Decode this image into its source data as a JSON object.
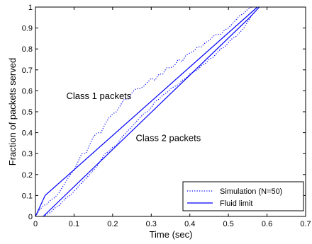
{
  "chart_data": {
    "type": "line",
    "xlabel": "Time (sec)",
    "ylabel": "Fraction of packets served",
    "xlim": [
      0,
      0.7
    ],
    "ylim": [
      0,
      1
    ],
    "xticks": [
      0,
      0.1,
      0.2,
      0.3,
      0.4,
      0.5,
      0.6,
      0.7
    ],
    "xtick_labels": [
      "0",
      "0.1",
      "0.2",
      "0.3",
      "0.4",
      "0.5",
      "0.6",
      "0.7"
    ],
    "yticks": [
      0,
      0.1,
      0.2,
      0.3,
      0.4,
      0.5,
      0.6,
      0.7,
      0.8,
      0.9,
      1
    ],
    "ytick_labels": [
      "0",
      "0.1",
      "0.2",
      "0.3",
      "0.4",
      "0.5",
      "0.6",
      "0.7",
      "0.8",
      "0.9",
      "1"
    ],
    "grid": false,
    "legend_position": "bottom-right",
    "legend": [
      "Simulation (N=50)",
      "Fluid limit"
    ],
    "annotations": [
      {
        "text": "Class 1 packets",
        "x": 0.08,
        "y": 0.56
      },
      {
        "text": "Class 2 packets",
        "x": 0.26,
        "y": 0.36
      }
    ],
    "series": [
      {
        "name": "Fluid limit",
        "style": "solid",
        "color": "#0000ff",
        "x": [
          0,
          0.025,
          0.575
        ],
        "y": [
          0,
          0.1,
          1.0
        ]
      },
      {
        "name": "Fluid limit",
        "style": "solid",
        "color": "#0000ff",
        "x": [
          0.02,
          0.555,
          0.58
        ],
        "y": [
          0,
          0.95,
          1.0
        ]
      },
      {
        "name": "Simulation (N=50)",
        "style": "dotted",
        "color": "#0000ff",
        "x": [
          0,
          0.01,
          0.02,
          0.03,
          0.04,
          0.05,
          0.06,
          0.07,
          0.08,
          0.09,
          0.1,
          0.11,
          0.12,
          0.13,
          0.14,
          0.15,
          0.16,
          0.17,
          0.18,
          0.19,
          0.2,
          0.21,
          0.22,
          0.23,
          0.24,
          0.25,
          0.26,
          0.27,
          0.28,
          0.29,
          0.3,
          0.31,
          0.32,
          0.33,
          0.34,
          0.35,
          0.36,
          0.37,
          0.38,
          0.39,
          0.4,
          0.41,
          0.42,
          0.43,
          0.44,
          0.45,
          0.46,
          0.47,
          0.48,
          0.49,
          0.5,
          0.51,
          0.52,
          0.53,
          0.54,
          0.55,
          0.56
        ],
        "y": [
          0,
          0.03,
          0.05,
          0.06,
          0.08,
          0.09,
          0.11,
          0.14,
          0.17,
          0.2,
          0.22,
          0.26,
          0.3,
          0.3,
          0.34,
          0.38,
          0.4,
          0.4,
          0.44,
          0.47,
          0.49,
          0.5,
          0.53,
          0.56,
          0.56,
          0.59,
          0.61,
          0.61,
          0.62,
          0.64,
          0.66,
          0.65,
          0.68,
          0.68,
          0.71,
          0.71,
          0.72,
          0.75,
          0.74,
          0.77,
          0.78,
          0.79,
          0.81,
          0.81,
          0.83,
          0.84,
          0.86,
          0.87,
          0.87,
          0.89,
          0.9,
          0.92,
          0.94,
          0.96,
          0.97,
          0.99,
          1.0
        ]
      },
      {
        "name": "Simulation (N=50)",
        "style": "dotted",
        "color": "#0000ff",
        "x": [
          0.02,
          0.03,
          0.04,
          0.05,
          0.06,
          0.07,
          0.08,
          0.09,
          0.1,
          0.11,
          0.12,
          0.13,
          0.14,
          0.15,
          0.16,
          0.17,
          0.18,
          0.19,
          0.2,
          0.21,
          0.22,
          0.23,
          0.24,
          0.25,
          0.26,
          0.27,
          0.28,
          0.29,
          0.3,
          0.31,
          0.32,
          0.33,
          0.34,
          0.35,
          0.36,
          0.37,
          0.38,
          0.39,
          0.4,
          0.41,
          0.42,
          0.43,
          0.44,
          0.45,
          0.46,
          0.47,
          0.48,
          0.49,
          0.5,
          0.51,
          0.52,
          0.53,
          0.54,
          0.55,
          0.56
        ],
        "y": [
          0,
          0.01,
          0.02,
          0.04,
          0.05,
          0.07,
          0.09,
          0.1,
          0.12,
          0.14,
          0.16,
          0.18,
          0.2,
          0.22,
          0.24,
          0.27,
          0.3,
          0.31,
          0.33,
          0.34,
          0.37,
          0.39,
          0.41,
          0.43,
          0.45,
          0.47,
          0.49,
          0.5,
          0.52,
          0.55,
          0.56,
          0.58,
          0.59,
          0.61,
          0.62,
          0.63,
          0.65,
          0.66,
          0.68,
          0.69,
          0.7,
          0.72,
          0.73,
          0.75,
          0.76,
          0.78,
          0.8,
          0.81,
          0.83,
          0.85,
          0.86,
          0.88,
          0.9,
          0.93,
          0.96
        ]
      }
    ]
  }
}
